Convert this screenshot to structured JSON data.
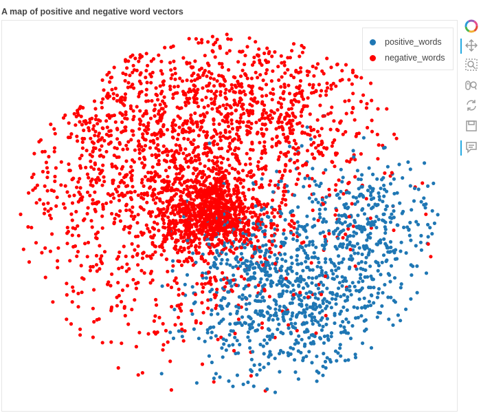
{
  "colors": {
    "positive": "#1f77b4",
    "negative": "#ff0000",
    "active_tool_bar": "#26aae1",
    "tool_icon": "#9a9a9a"
  },
  "toolbar": {
    "tools": [
      {
        "icon": "bokeh-logo-icon",
        "active": false
      },
      {
        "icon": "pan-icon",
        "active": true
      },
      {
        "icon": "box-zoom-icon",
        "active": false
      },
      {
        "icon": "wheel-zoom-icon",
        "active": false
      },
      {
        "icon": "reset-icon",
        "active": false
      },
      {
        "icon": "save-icon",
        "active": false
      },
      {
        "icon": "hover-icon",
        "active": true
      }
    ]
  },
  "chart_data": {
    "type": "scatter",
    "title": "A map of positive and negative word vectors",
    "xlabel": "",
    "ylabel": "",
    "xlim": [
      0,
      1
    ],
    "ylim": [
      0,
      1
    ],
    "grid": false,
    "legend_position": "top-right",
    "point_count_estimate": {
      "positive_words": 1200,
      "negative_words": 2900
    },
    "series": [
      {
        "name": "positive_words",
        "color": "#1f77b4",
        "distribution": {
          "clusters": [
            {
              "cx": 0.72,
              "cy": 0.34,
              "sx": 0.13,
              "sy": 0.15,
              "weight": 0.55
            },
            {
              "cx": 0.6,
              "cy": 0.22,
              "sx": 0.1,
              "sy": 0.08,
              "weight": 0.2
            },
            {
              "cx": 0.82,
              "cy": 0.5,
              "sx": 0.07,
              "sy": 0.08,
              "weight": 0.13
            },
            {
              "cx": 0.52,
              "cy": 0.38,
              "sx": 0.06,
              "sy": 0.06,
              "weight": 0.12
            }
          ]
        },
        "sample_points": [
          {
            "x": 0.62,
            "y": 0.42
          },
          {
            "x": 0.7,
            "y": 0.3
          },
          {
            "x": 0.8,
            "y": 0.45
          },
          {
            "x": 0.88,
            "y": 0.28
          },
          {
            "x": 0.58,
            "y": 0.18
          },
          {
            "x": 0.75,
            "y": 0.55
          },
          {
            "x": 0.92,
            "y": 0.38
          },
          {
            "x": 0.66,
            "y": 0.1
          }
        ]
      },
      {
        "name": "negative_words",
        "color": "#ff0000",
        "distribution": {
          "clusters": [
            {
              "cx": 0.46,
              "cy": 0.51,
              "sx": 0.06,
              "sy": 0.05,
              "weight": 0.25
            },
            {
              "cx": 0.35,
              "cy": 0.62,
              "sx": 0.2,
              "sy": 0.22,
              "weight": 0.55
            },
            {
              "cx": 0.55,
              "cy": 0.78,
              "sx": 0.16,
              "sy": 0.1,
              "weight": 0.2
            }
          ]
        },
        "sample_points": [
          {
            "x": 0.46,
            "y": 0.51
          },
          {
            "x": 0.3,
            "y": 0.7
          },
          {
            "x": 0.2,
            "y": 0.5
          },
          {
            "x": 0.55,
            "y": 0.85
          },
          {
            "x": 0.4,
            "y": 0.88
          },
          {
            "x": 0.12,
            "y": 0.45
          },
          {
            "x": 0.7,
            "y": 0.7
          },
          {
            "x": 0.38,
            "y": 0.3
          }
        ]
      }
    ]
  }
}
